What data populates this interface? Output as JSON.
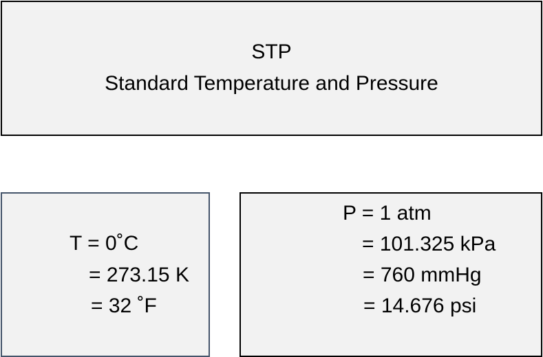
{
  "title_box": {
    "heading": "STP",
    "subheading": "Standard Temperature and Pressure"
  },
  "temperature_box": {
    "lines": [
      "T = 0˚C",
      "= 273.15 K",
      "= 32 ˚F"
    ]
  },
  "pressure_box": {
    "lines": [
      "P = 1 atm",
      "= 101.325 kPa",
      "= 760 mmHg",
      "= 14.676 psi"
    ]
  },
  "colors": {
    "box_fill": "#f2f2f2",
    "title_border": "#000000",
    "temperature_border": "#44546a",
    "pressure_border": "#000000",
    "text": "#000000"
  }
}
